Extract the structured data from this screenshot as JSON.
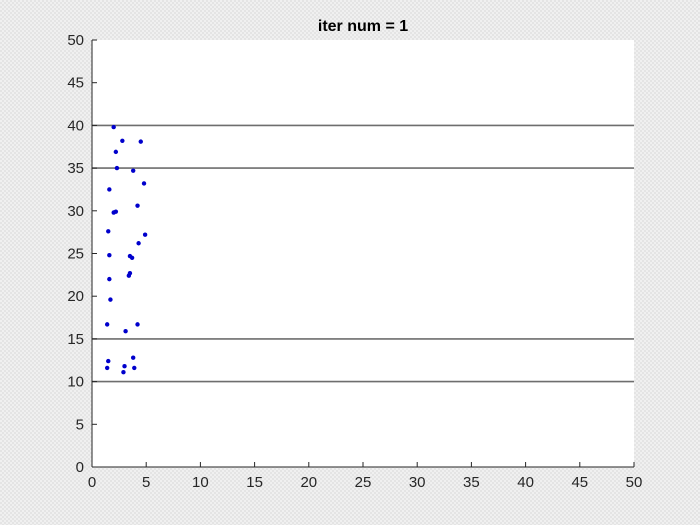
{
  "chart_data": {
    "type": "scatter",
    "title": "iter num = 1",
    "xlabel": "",
    "ylabel": "",
    "xlim": [
      0,
      50
    ],
    "ylim": [
      0,
      50
    ],
    "xticks": [
      0,
      5,
      10,
      15,
      20,
      25,
      30,
      35,
      40,
      45,
      50
    ],
    "yticks": [
      0,
      5,
      10,
      15,
      20,
      25,
      30,
      35,
      40,
      45,
      50
    ],
    "grid": false,
    "point_color": "#0000cc",
    "hline_color": "#6e6e6e",
    "horizontal_lines": [
      10,
      15,
      35,
      40
    ],
    "series": [
      {
        "points": [
          [
            1.4,
            16.7
          ],
          [
            1.5,
            27.6
          ],
          [
            1.6,
            32.5
          ],
          [
            1.6,
            24.8
          ],
          [
            1.6,
            22.0
          ],
          [
            1.7,
            19.6
          ],
          [
            1.5,
            12.4
          ],
          [
            1.4,
            11.6
          ],
          [
            2.0,
            39.8
          ],
          [
            2.2,
            36.9
          ],
          [
            2.3,
            35.0
          ],
          [
            2.0,
            29.8
          ],
          [
            2.2,
            29.9
          ],
          [
            2.8,
            38.2
          ],
          [
            3.0,
            11.8
          ],
          [
            2.9,
            11.1
          ],
          [
            3.1,
            15.9
          ],
          [
            3.5,
            24.7
          ],
          [
            3.7,
            24.5
          ],
          [
            3.5,
            22.7
          ],
          [
            3.4,
            22.4
          ],
          [
            3.8,
            34.7
          ],
          [
            3.8,
            12.8
          ],
          [
            3.9,
            11.6
          ],
          [
            4.2,
            30.6
          ],
          [
            4.2,
            16.7
          ],
          [
            4.3,
            26.2
          ],
          [
            4.5,
            38.1
          ],
          [
            4.8,
            33.2
          ],
          [
            4.9,
            27.2
          ]
        ]
      }
    ]
  }
}
